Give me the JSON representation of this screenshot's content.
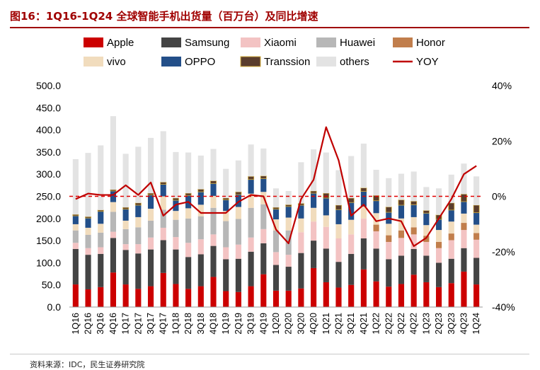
{
  "header": {
    "title": "图16：1Q16-1Q24 全球智能手机出货量（百万台）及同比增速"
  },
  "footer": {
    "source": "资料来源：IDC，民生证券研究院"
  },
  "colors": {
    "Apple": "#cc0000",
    "Samsung": "#444444",
    "Xiaomi": "#f3c3c3",
    "Huawei": "#b7b7b7",
    "Honor": "#c17e4c",
    "vivo": "#f1dcbd",
    "OPPO": "#234f89",
    "Transsion": "#5a3d2d",
    "others": "#e3e3e3",
    "YOY": "#c00000",
    "zero_line": "#e00000"
  },
  "chart_data": {
    "type": "bar",
    "stacked": true,
    "title": "1Q16-1Q24 全球智能手机出货量（百万台）及同比增速",
    "xlabel": "",
    "ylabel": "",
    "ylim": [
      0,
      500
    ],
    "y_ticks": [
      "0.0",
      "50.0",
      "100.0",
      "150.0",
      "200.0",
      "250.0",
      "300.0",
      "350.0",
      "400.0",
      "450.0",
      "500.0"
    ],
    "y2lim": [
      -40,
      40
    ],
    "y2_ticks": [
      "-40%",
      "-20%",
      "0%",
      "20%",
      "40%"
    ],
    "legend_position": "top",
    "legend": [
      "Apple",
      "Samsung",
      "Xiaomi",
      "Huawei",
      "Honor",
      "vivo",
      "OPPO",
      "Transsion",
      "others",
      "YOY"
    ],
    "categories": [
      "1Q16",
      "2Q16",
      "3Q16",
      "4Q16",
      "1Q17",
      "2Q17",
      "3Q17",
      "4Q17",
      "1Q18",
      "2Q18",
      "3Q18",
      "4Q18",
      "1Q19",
      "2Q19",
      "3Q19",
      "4Q19",
      "1Q20",
      "2Q20",
      "3Q20",
      "4Q20",
      "1Q21",
      "2Q21",
      "3Q21",
      "4Q21",
      "1Q22",
      "2Q22",
      "3Q22",
      "4Q22",
      "1Q23",
      "2Q23",
      "3Q23",
      "4Q23",
      "1Q24"
    ],
    "series": [
      {
        "name": "Apple",
        "values": [
          51,
          40,
          45,
          78,
          51,
          41,
          47,
          77,
          52,
          41,
          47,
          68,
          36,
          34,
          47,
          74,
          37,
          37,
          42,
          88,
          56,
          44,
          50,
          85,
          58,
          46,
          52,
          73,
          56,
          45,
          54,
          80,
          51
        ]
      },
      {
        "name": "Samsung",
        "values": [
          80,
          78,
          75,
          78,
          78,
          80,
          83,
          74,
          78,
          72,
          72,
          70,
          72,
          75,
          78,
          70,
          58,
          54,
          80,
          62,
          76,
          58,
          70,
          70,
          74,
          62,
          64,
          58,
          60,
          55,
          55,
          53,
          60
        ]
      },
      {
        "name": "Xiaomi",
        "values": [
          14,
          15,
          15,
          14,
          13,
          21,
          27,
          28,
          28,
          32,
          34,
          26,
          27,
          32,
          32,
          32,
          29,
          27,
          47,
          43,
          49,
          53,
          44,
          45,
          39,
          39,
          40,
          33,
          31,
          33,
          42,
          41,
          41
        ]
      },
      {
        "name": "Huawei",
        "values": [
          28,
          30,
          33,
          45,
          34,
          38,
          38,
          41,
          39,
          55,
          52,
          60,
          59,
          58,
          67,
          56,
          49,
          55,
          0,
          0,
          0,
          0,
          0,
          0,
          0,
          0,
          0,
          0,
          0,
          0,
          0,
          0,
          0
        ]
      },
      {
        "name": "Honor",
        "values": [
          0,
          0,
          0,
          0,
          0,
          0,
          0,
          0,
          0,
          0,
          0,
          0,
          0,
          0,
          0,
          0,
          0,
          0,
          0,
          0,
          0,
          0,
          0,
          0,
          15,
          15,
          17,
          16,
          14,
          14,
          15,
          16,
          15
        ]
      },
      {
        "name": "vivo",
        "values": [
          14,
          16,
          20,
          22,
          19,
          23,
          27,
          30,
          20,
          23,
          26,
          27,
          23,
          27,
          32,
          28,
          25,
          29,
          31,
          31,
          26,
          32,
          33,
          27,
          26,
          26,
          27,
          23,
          24,
          27,
          27,
          21,
          19
        ]
      },
      {
        "name": "OPPO",
        "values": [
          19,
          22,
          28,
          25,
          26,
          27,
          31,
          27,
          24,
          29,
          29,
          28,
          25,
          28,
          32,
          30,
          23,
          25,
          30,
          33,
          39,
          33,
          39,
          34,
          28,
          26,
          30,
          28,
          27,
          24,
          26,
          27,
          27
        ]
      },
      {
        "name": "Transsion",
        "values": [
          3,
          3,
          3,
          3,
          4,
          5,
          4,
          5,
          5,
          5,
          6,
          6,
          4,
          6,
          7,
          6,
          4,
          4,
          4,
          5,
          11,
          10,
          10,
          8,
          12,
          12,
          12,
          8,
          6,
          10,
          16,
          17,
          17
        ]
      },
      {
        "name": "others",
        "values": [
          125,
          144,
          146,
          166,
          121,
          127,
          125,
          115,
          104,
          92,
          76,
          72,
          66,
          71,
          72,
          62,
          43,
          31,
          93,
          94,
          92,
          79,
          95,
          100,
          58,
          65,
          59,
          67,
          53,
          60,
          64,
          69,
          65
        ]
      }
    ],
    "yoy": {
      "name": "YOY",
      "unit": "%",
      "values": [
        -1,
        1,
        0.5,
        0.5,
        4,
        0.5,
        5,
        -7,
        -3,
        -2,
        -6,
        -6,
        -6,
        -2,
        0.5,
        0,
        -12,
        -17,
        -1,
        6,
        25,
        13,
        -7,
        -3,
        -9,
        -8,
        -9,
        -18,
        -15,
        -8,
        -1,
        8,
        11
      ]
    }
  }
}
